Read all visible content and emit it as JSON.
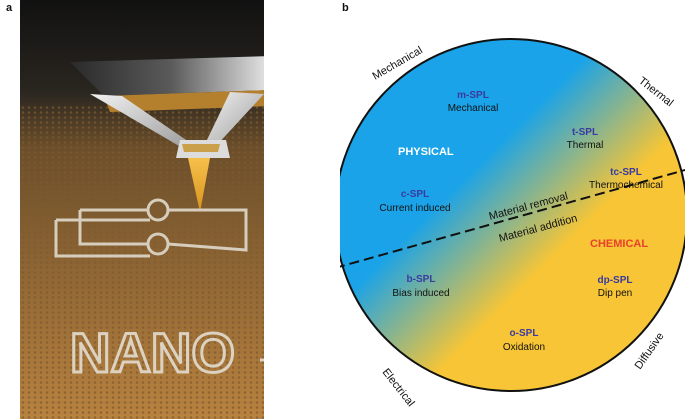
{
  "panels": {
    "a": "a",
    "b": "b"
  },
  "panel_a": {
    "engraved_text": "NANO"
  },
  "panel_b": {
    "outer_labels": {
      "mechanical": "Mechanical",
      "thermal": "Thermal",
      "electrical": "Electrical",
      "diffusive": "Diffusive"
    },
    "regions": {
      "physical": "PHYSICAL",
      "chemical": "CHEMICAL"
    },
    "divider": {
      "above": "Material removal",
      "below": "Material addition"
    },
    "methods": [
      {
        "abbr": "m-SPL",
        "name": "Mechanical"
      },
      {
        "abbr": "t-SPL",
        "name": "Thermal"
      },
      {
        "abbr": "c-SPL",
        "name": "Current induced"
      },
      {
        "abbr": "tc-SPL",
        "name": "Thermochemical"
      },
      {
        "abbr": "b-SPL",
        "name": "Bias induced"
      },
      {
        "abbr": "dp-SPL",
        "name": "Dip pen"
      },
      {
        "abbr": "o-SPL",
        "name": "Oxidation"
      }
    ],
    "colors": {
      "physical": "#1aa3e8",
      "chemical": "#f7c535",
      "method_abbr": "#3a3aa0",
      "chemical_label": "#e8412c"
    }
  }
}
